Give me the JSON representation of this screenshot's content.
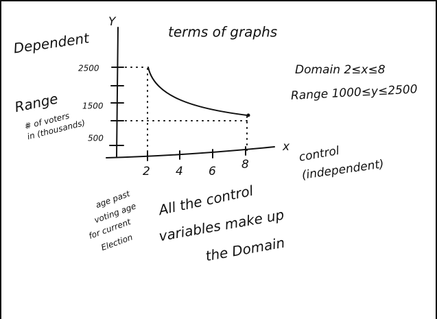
{
  "title": "terms of graphs",
  "graph": {
    "y_label": "Y",
    "x_label": "x",
    "dependent_label": "Dependent",
    "y_ticks": [
      "2500",
      "1500",
      "500"
    ],
    "x_ticks": [
      "2",
      "4",
      "6",
      "8"
    ],
    "range_label": "Range",
    "range_note": [
      "# of voters",
      "in (thousands)"
    ],
    "x_note": [
      "age past",
      "voting age",
      "for current",
      "Election"
    ],
    "control_label": [
      "control",
      "(independent)"
    ]
  },
  "notes": {
    "domain": "Domain 2≤x≤8",
    "range": "Range 1000≤y≤2500",
    "summary": [
      "All the control",
      "variables make up",
      "the Domain"
    ]
  }
}
